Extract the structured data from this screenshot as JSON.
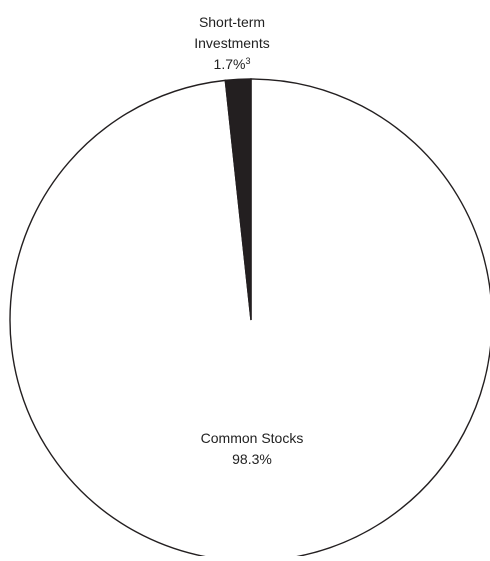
{
  "chart_data": {
    "type": "pie",
    "slices": [
      {
        "label": "Common Stocks",
        "label_lines": [
          "Common Stocks"
        ],
        "value": 98.3,
        "value_text": "98.3%",
        "footnote": "",
        "color": "#ffffff"
      },
      {
        "label": "Short-term Investments",
        "label_lines": [
          "Short-term",
          "Investments"
        ],
        "value": 1.7,
        "value_text": "1.7%",
        "footnote": "3",
        "color": "#231f20"
      }
    ],
    "stroke_color": "#231f20"
  }
}
